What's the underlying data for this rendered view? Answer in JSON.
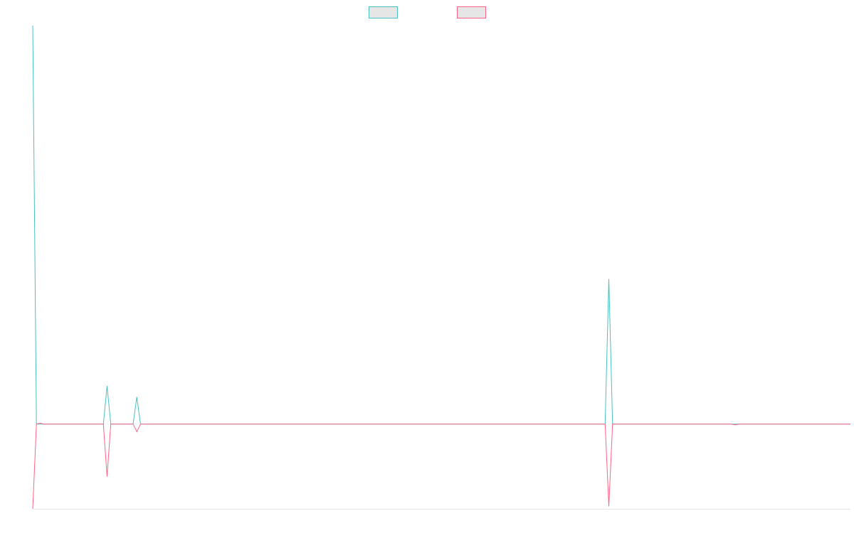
{
  "chart_data": {
    "type": "line",
    "title": "",
    "xlabel": "",
    "ylabel": "",
    "grid": false,
    "legend_position": "top-center",
    "x": [
      0,
      1,
      2,
      3,
      4,
      5,
      6,
      7,
      8,
      9,
      10,
      11,
      12,
      13,
      14,
      15,
      16,
      17,
      18,
      19,
      20,
      21,
      22,
      23,
      24,
      25,
      26,
      27,
      28,
      29,
      30,
      31,
      32,
      33,
      34,
      35,
      36,
      37,
      38,
      39,
      40,
      41,
      42,
      43,
      44,
      45,
      46,
      47,
      48,
      49,
      50,
      51,
      52,
      53,
      54,
      55,
      56,
      57,
      58,
      59,
      60,
      61,
      62,
      63,
      64,
      65,
      66,
      67,
      68,
      69,
      70,
      71,
      72,
      73,
      74,
      75,
      76,
      77,
      78,
      79,
      80,
      81,
      82,
      83,
      84,
      85,
      86,
      87,
      88,
      89,
      90,
      91,
      92,
      93,
      94,
      95,
      96,
      97,
      98,
      99,
      100,
      101,
      102,
      103,
      104,
      105,
      106,
      107,
      108,
      109,
      110,
      111,
      112,
      113,
      114,
      115,
      116,
      117,
      118,
      119,
      120,
      121,
      122,
      123,
      124,
      125,
      126,
      127,
      128,
      129,
      130,
      131,
      132,
      133,
      134,
      135,
      136,
      137,
      138,
      139,
      140,
      141,
      142,
      143,
      144,
      145,
      146,
      147,
      148,
      149,
      150,
      151,
      152,
      153,
      154,
      155,
      156,
      157,
      158,
      159,
      160,
      161,
      162,
      163,
      164,
      165,
      166,
      167,
      168,
      169,
      170,
      171,
      172,
      173,
      174,
      175,
      176,
      177,
      178,
      179,
      180,
      181,
      182,
      183,
      184,
      185,
      186,
      187,
      188,
      189,
      190,
      191,
      192,
      193,
      194,
      195,
      196,
      197,
      198,
      199,
      200,
      201,
      202,
      203,
      204,
      205,
      206,
      207,
      208,
      209,
      210,
      211,
      212,
      213,
      214,
      215,
      216,
      217,
      218,
      219,
      220
    ],
    "ylim": [
      -100,
      470
    ],
    "series": [
      {
        "color": "#4bc0c0",
        "sparse_values": {
          "0": 470,
          "20": 45,
          "28": 32,
          "155": 171
        },
        "default": 0
      },
      {
        "color": "#ff6384",
        "sparse_values": {
          "0": -100,
          "2": 1,
          "20": -62,
          "28": -9,
          "155": -97,
          "189": -1
        },
        "default": 0
      }
    ]
  },
  "legend": {
    "items": [
      {
        "color": "#4bc0c0",
        "fill": "#e6e6e6"
      },
      {
        "color": "#ff6384",
        "fill": "#e6e6e6"
      }
    ]
  }
}
